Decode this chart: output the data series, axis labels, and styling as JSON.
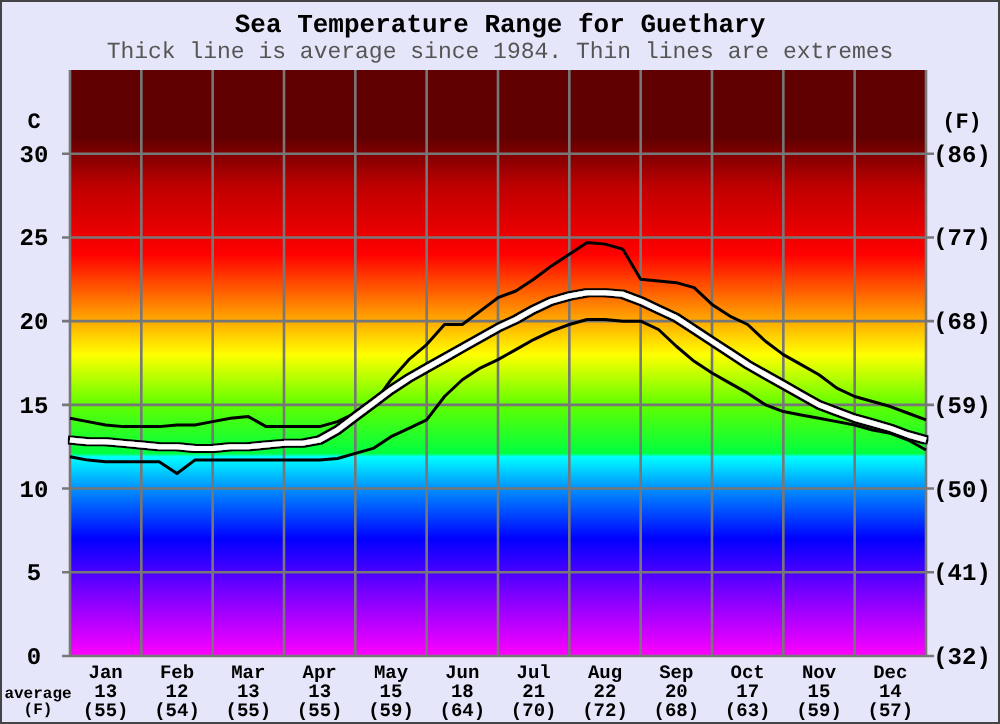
{
  "chart_data": {
    "type": "line",
    "title": "Sea Temperature Range for Guethary",
    "subtitle": "Thick line is average since 1984. Thin lines are extremes",
    "ylabel": "C",
    "y2label": "(F)",
    "annotations": [
      "average\n(F)"
    ],
    "categories": [
      null,
      null,
      "Jan\n13\n(55)",
      null,
      null,
      null,
      "Feb\n12\n(54)",
      null,
      null,
      null,
      "Mar\n13\n(55)",
      null,
      null,
      null,
      "Apr\n13\n(55)",
      null,
      null,
      null,
      "May\n15\n(59)",
      null,
      null,
      null,
      "Jun\n18\n(64)",
      null,
      null,
      null,
      "Jul\n21\n(70)",
      null,
      null,
      null,
      "Aug\n22\n(72)",
      null,
      null,
      null,
      "Sep\n20\n(68)",
      null,
      null,
      null,
      "Oct\n17\n(63)",
      null,
      null,
      null,
      "Nov\n15\n(59)",
      null,
      null,
      null,
      "Dec\n14\n(57)",
      null,
      null
    ],
    "ylim": [
      0,
      35
    ],
    "yticks": [
      0,
      5,
      10,
      15,
      20,
      25,
      30
    ],
    "y2lim": [
      32,
      95
    ],
    "y2ticks": [
      {
        "value": 32,
        "label": "(32)"
      },
      {
        "value": 41,
        "label": "(41)"
      },
      {
        "value": 50,
        "label": "(50)"
      },
      {
        "value": 59,
        "label": "(59)"
      },
      {
        "value": 68,
        "label": "(68)"
      },
      {
        "value": 77,
        "label": "(77)"
      },
      {
        "value": 86,
        "label": "(86)"
      }
    ],
    "grid": true,
    "marker": "none",
    "line_style": "solid",
    "series": [
      {
        "color": "#000000",
        "values": [
          14.2,
          14.0,
          13.8,
          13.7,
          13.7,
          13.7,
          13.8,
          13.8,
          14.0,
          14.2,
          14.3,
          13.7,
          13.7,
          13.7,
          13.7,
          14.0,
          14.5,
          15.0,
          16.5,
          17.7,
          18.6,
          19.8,
          19.8,
          20.6,
          21.4,
          21.8,
          22.5,
          23.3,
          24.0,
          24.7,
          24.6,
          24.3,
          22.5,
          22.4,
          22.3,
          22.0,
          21.0,
          20.3,
          19.8,
          18.8,
          18.0,
          17.4,
          16.8,
          16.0,
          15.5,
          15.2,
          14.9,
          14.5,
          14.1
        ]
      },
      {
        "color": "#ffffff",
        "values": [
          12.9,
          12.8,
          12.8,
          12.7,
          12.6,
          12.5,
          12.5,
          12.4,
          12.4,
          12.5,
          12.5,
          12.6,
          12.7,
          12.7,
          12.9,
          13.5,
          14.3,
          15.1,
          15.9,
          16.6,
          17.2,
          17.8,
          18.4,
          19.0,
          19.6,
          20.1,
          20.7,
          21.2,
          21.5,
          21.7,
          21.7,
          21.6,
          21.2,
          20.7,
          20.2,
          19.5,
          18.8,
          18.1,
          17.4,
          16.8,
          16.2,
          15.6,
          15.0,
          14.6,
          14.2,
          13.9,
          13.6,
          13.2,
          12.9
        ]
      },
      {
        "color": "#000000",
        "values": [
          11.9,
          11.7,
          11.6,
          11.6,
          11.6,
          11.6,
          10.9,
          11.7,
          11.7,
          11.7,
          11.7,
          11.7,
          11.7,
          11.7,
          11.7,
          11.8,
          12.1,
          12.4,
          13.1,
          13.6,
          14.1,
          15.5,
          16.5,
          17.2,
          17.7,
          18.3,
          18.9,
          19.4,
          19.8,
          20.1,
          20.1,
          20.0,
          20.0,
          19.5,
          18.5,
          17.6,
          16.9,
          16.3,
          15.7,
          15.0,
          14.6,
          14.4,
          14.2,
          14.0,
          13.8,
          13.5,
          13.3,
          12.9,
          12.3
        ]
      }
    ]
  }
}
